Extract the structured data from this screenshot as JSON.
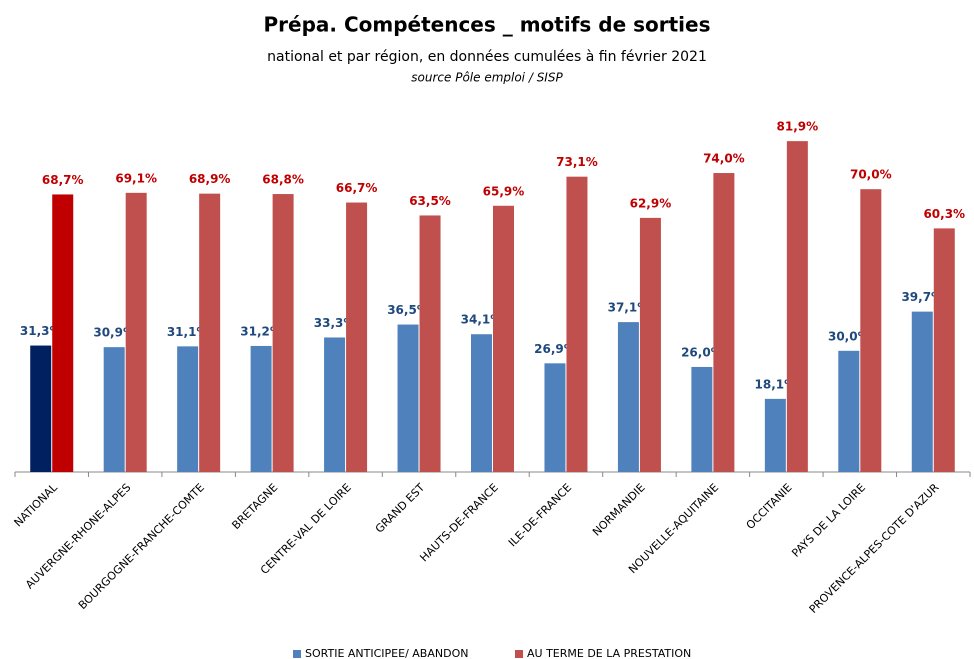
{
  "chart_data": {
    "type": "bar",
    "title": "Prépa. Compétences _ motifs de sorties",
    "subtitle": "national et par région, en données cumulées à fin février 2021",
    "source": "source Pôle emploi / SISP",
    "categories": [
      "NATIONAL",
      "AUVERGNE-RHONE-ALPES",
      "BOURGOGNE-FRANCHE-COMTE",
      "BRETAGNE",
      "CENTRE-VAL DE LOIRE",
      "GRAND EST",
      "HAUTS-DE-FRANCE",
      "ILE-DE-FRANCE",
      "NORMANDIE",
      "NOUVELLE-AQUITAINE",
      "OCCITANIE",
      "PAYS DE LA LOIRE",
      "PROVENCE-ALPES-COTE D'AZUR"
    ],
    "series": [
      {
        "name": "SORTIE ANTICIPEE/ ABANDON",
        "color": "#4f81bd",
        "label_color": "#1f497d",
        "colors": [
          "#002060",
          "#4f81bd",
          "#4f81bd",
          "#4f81bd",
          "#4f81bd",
          "#4f81bd",
          "#4f81bd",
          "#4f81bd",
          "#4f81bd",
          "#4f81bd",
          "#4f81bd",
          "#4f81bd",
          "#4f81bd"
        ],
        "values": [
          31.3,
          30.9,
          31.1,
          31.2,
          33.3,
          36.5,
          34.1,
          26.9,
          37.1,
          26.0,
          18.1,
          30.0,
          39.7
        ],
        "value_labels": [
          "31,3%",
          "30,9%",
          "31,1%",
          "31,2%",
          "33,3%",
          "36,5%",
          "34,1%",
          "26,9%",
          "37,1%",
          "26,0%",
          "18,1%",
          "30,0%",
          "39,7%"
        ]
      },
      {
        "name": "AU TERME DE LA PRESTATION",
        "color": "#c0504d",
        "label_color": "#c00000",
        "colors": [
          "#c00000",
          "#c0504d",
          "#c0504d",
          "#c0504d",
          "#c0504d",
          "#c0504d",
          "#c0504d",
          "#c0504d",
          "#c0504d",
          "#c0504d",
          "#c0504d",
          "#c0504d",
          "#c0504d"
        ],
        "values": [
          68.7,
          69.1,
          68.9,
          68.8,
          66.7,
          63.5,
          65.9,
          73.1,
          62.9,
          74.0,
          81.9,
          70.0,
          60.3
        ],
        "value_labels": [
          "68,7%",
          "69,1%",
          "68,9%",
          "68,8%",
          "66,7%",
          "63,5%",
          "65,9%",
          "73,1%",
          "62,9%",
          "74,0%",
          "81,9%",
          "70,0%",
          "60,3%"
        ]
      }
    ],
    "legend": "bottom"
  }
}
